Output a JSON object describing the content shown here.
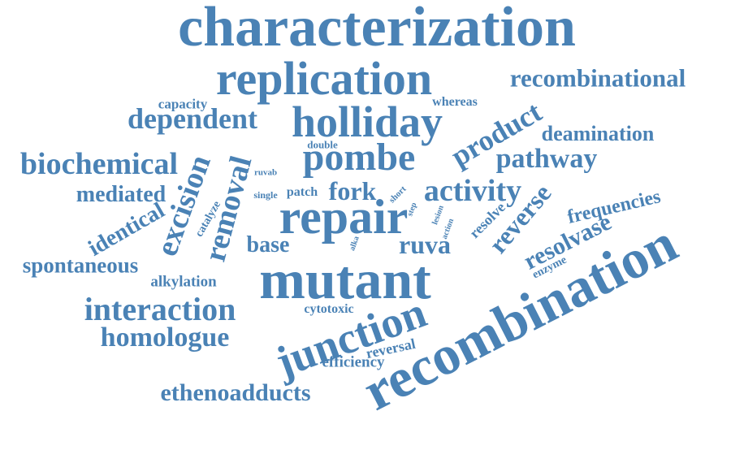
{
  "color": "#4a82b5",
  "words": [
    {
      "text": "characterization",
      "orientation": "horizontal",
      "size": "largest"
    },
    {
      "text": "replication",
      "orientation": "horizontal",
      "size": "large"
    },
    {
      "text": "recombinational",
      "orientation": "horizontal",
      "size": "medium"
    },
    {
      "text": "capacity",
      "orientation": "horizontal",
      "size": "small"
    },
    {
      "text": "whereas",
      "orientation": "horizontal",
      "size": "small"
    },
    {
      "text": "holliday",
      "orientation": "horizontal",
      "size": "large"
    },
    {
      "text": "dependent",
      "orientation": "horizontal",
      "size": "medium"
    },
    {
      "text": "product",
      "orientation": "rotated",
      "size": "medium"
    },
    {
      "text": "deamination",
      "orientation": "horizontal",
      "size": "medium"
    },
    {
      "text": "double",
      "orientation": "horizontal",
      "size": "small"
    },
    {
      "text": "biochemical",
      "orientation": "horizontal",
      "size": "medium"
    },
    {
      "text": "pombe",
      "orientation": "horizontal",
      "size": "large"
    },
    {
      "text": "pathway",
      "orientation": "horizontal",
      "size": "medium"
    },
    {
      "text": "excision",
      "orientation": "rotated",
      "size": "medium"
    },
    {
      "text": "removal",
      "orientation": "rotated",
      "size": "medium"
    },
    {
      "text": "ruvab",
      "orientation": "horizontal",
      "size": "small"
    },
    {
      "text": "mediated",
      "orientation": "horizontal",
      "size": "medium"
    },
    {
      "text": "catalyze",
      "orientation": "rotated",
      "size": "small"
    },
    {
      "text": "single",
      "orientation": "horizontal",
      "size": "small"
    },
    {
      "text": "patch",
      "orientation": "horizontal",
      "size": "small"
    },
    {
      "text": "fork",
      "orientation": "horizontal",
      "size": "medium"
    },
    {
      "text": "short",
      "orientation": "rotated",
      "size": "small"
    },
    {
      "text": "activity",
      "orientation": "horizontal",
      "size": "medium"
    },
    {
      "text": "reverse",
      "orientation": "rotated",
      "size": "medium"
    },
    {
      "text": "frequencies",
      "orientation": "rotated",
      "size": "medium"
    },
    {
      "text": "identical",
      "orientation": "rotated",
      "size": "medium"
    },
    {
      "text": "repair",
      "orientation": "horizontal",
      "size": "large"
    },
    {
      "text": "step",
      "orientation": "rotated",
      "size": "small"
    },
    {
      "text": "lesion",
      "orientation": "rotated",
      "size": "small"
    },
    {
      "text": "action",
      "orientation": "rotated",
      "size": "small"
    },
    {
      "text": "resolve",
      "orientation": "rotated",
      "size": "small"
    },
    {
      "text": "resolvase",
      "orientation": "rotated",
      "size": "medium"
    },
    {
      "text": "base",
      "orientation": "horizontal",
      "size": "medium"
    },
    {
      "text": "alka",
      "orientation": "rotated",
      "size": "small"
    },
    {
      "text": "ruva",
      "orientation": "horizontal",
      "size": "medium"
    },
    {
      "text": "spontaneous",
      "orientation": "horizontal",
      "size": "medium"
    },
    {
      "text": "enzyme",
      "orientation": "rotated",
      "size": "small"
    },
    {
      "text": "mutant",
      "orientation": "horizontal",
      "size": "large"
    },
    {
      "text": "alkylation",
      "orientation": "horizontal",
      "size": "small"
    },
    {
      "text": "recombination",
      "orientation": "rotated",
      "size": "largest"
    },
    {
      "text": "interaction",
      "orientation": "horizontal",
      "size": "medium"
    },
    {
      "text": "cytotoxic",
      "orientation": "horizontal",
      "size": "small"
    },
    {
      "text": "junction",
      "orientation": "rotated",
      "size": "large"
    },
    {
      "text": "homologue",
      "orientation": "horizontal",
      "size": "medium"
    },
    {
      "text": "reversal",
      "orientation": "horizontal",
      "size": "small"
    },
    {
      "text": "efficiency",
      "orientation": "horizontal",
      "size": "small"
    },
    {
      "text": "ethenoadducts",
      "orientation": "horizontal",
      "size": "medium"
    }
  ]
}
